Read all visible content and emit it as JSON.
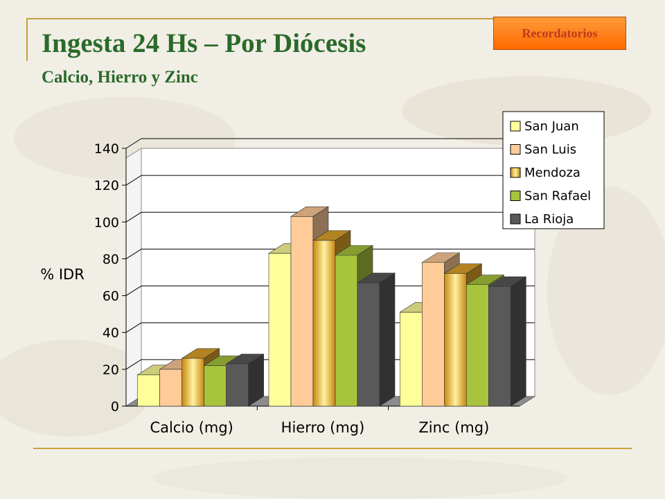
{
  "header": {
    "title": "Ingesta 24 Hs – Por Diócesis",
    "subtitle": "Calcio, Hierro y Zinc",
    "badge_label": "Recordatorios"
  },
  "colors": {
    "title": "#2a6a2a",
    "accent_rule": "#c7a13c",
    "badge_bg": "#ff7a10",
    "badge_text": "#c0391f"
  },
  "chart_data": {
    "type": "bar",
    "title": "",
    "ylabel": "% IDR",
    "xlabel": "",
    "categories": [
      "Calcio (mg)",
      "Hierro (mg)",
      "Zinc (mg)"
    ],
    "ylim": [
      0,
      140
    ],
    "yticks": [
      0,
      20,
      40,
      60,
      80,
      100,
      120,
      140
    ],
    "grid": true,
    "legend_position": "top-right",
    "style": "3d-clustered",
    "series": [
      {
        "name": "San Juan",
        "color": "#ffff99",
        "values": [
          17,
          83,
          51
        ]
      },
      {
        "name": "San Luis",
        "color": "#ffcc99",
        "values": [
          20,
          103,
          78
        ]
      },
      {
        "name": "Mendoza",
        "color": "#e0a42a",
        "values": [
          26,
          90,
          72
        ]
      },
      {
        "name": "San Rafael",
        "color": "#a8c43c",
        "values": [
          22,
          82,
          66
        ]
      },
      {
        "name": "La Rioja",
        "color": "#595959",
        "values": [
          23,
          67,
          65
        ]
      }
    ]
  }
}
